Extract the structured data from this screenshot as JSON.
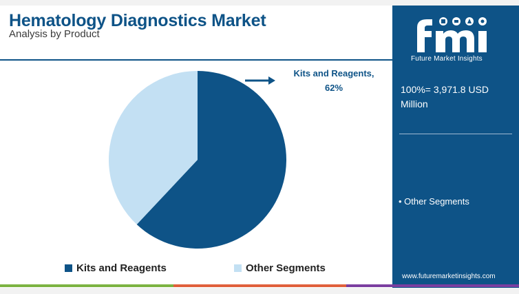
{
  "header": {
    "title": "Hematology Diagnostics Market",
    "subtitle": "Analysis by Product"
  },
  "chart_data": {
    "type": "pie",
    "categories": [
      "Kits and Reagents",
      "Other Segments"
    ],
    "values": [
      62,
      38
    ],
    "colors": [
      "#0e5387",
      "#c3e0f3"
    ],
    "callout": {
      "label": "Kits and Reagents,",
      "value": "62%"
    },
    "legend": {
      "placement": "bottom",
      "items": [
        {
          "label": "Kits and Reagents",
          "color": "#0e5387"
        },
        {
          "label": "Other Segments",
          "color": "#c3e0f3"
        }
      ]
    }
  },
  "panel": {
    "logo_name": "fmi",
    "logo_caption": "Future Market Insights",
    "total_text": "100%= 3,971.8 USD Million",
    "other_segments": "• Other Segments",
    "url": "www.futuremarketinsights.com"
  },
  "colors": {
    "primary": "#0e5387",
    "light": "#c3e0f3",
    "bottom_bar": [
      "#7cb342",
      "#e0603c",
      "#7b3fa0"
    ]
  }
}
